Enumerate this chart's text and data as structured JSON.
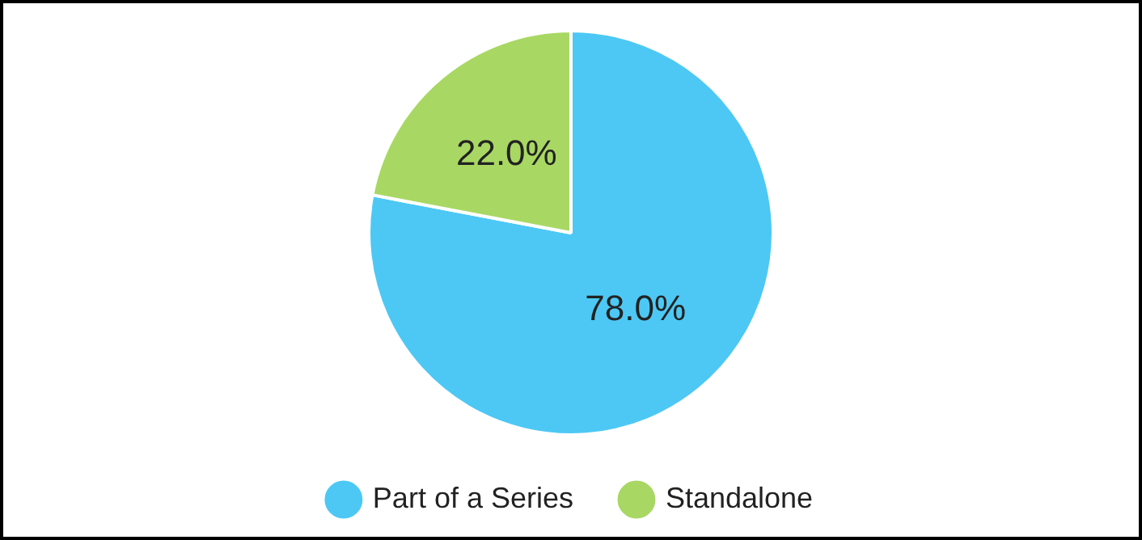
{
  "chart_data": {
    "type": "pie",
    "categories": [
      "Part of a Series",
      "Standalone"
    ],
    "values": [
      78,
      22
    ],
    "colors": [
      "#4dc8f4",
      "#a8d863"
    ],
    "value_labels": [
      "78.0%",
      "22.0%"
    ],
    "legend": "bottom"
  }
}
